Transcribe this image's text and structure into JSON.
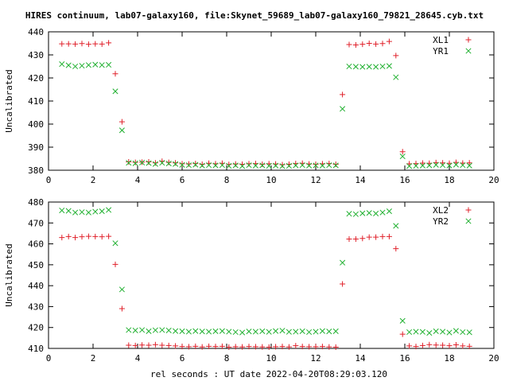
{
  "title": "HIRES continuum, lab07-galaxy160, file:Skynet_59689_lab07-galaxy160_79821_28645.cyb.txt",
  "xlabel": "rel seconds : UT date 2022-04-20T08:29:03.120",
  "colors": {
    "XL": "#e0202a",
    "YR": "#20b030"
  },
  "chart_data": [
    {
      "type": "scatter",
      "ylabel": "Uncalibrated",
      "xlim": [
        0,
        20
      ],
      "ylim": [
        380,
        440
      ],
      "xticks": [
        0,
        2,
        4,
        6,
        8,
        10,
        12,
        14,
        16,
        18,
        20
      ],
      "yticks": [
        380,
        390,
        400,
        410,
        420,
        430,
        440
      ],
      "legend": "top-right",
      "series": [
        {
          "name": "XL1",
          "marker": "plus",
          "x": [
            0.6,
            0.9,
            1.2,
            1.5,
            1.8,
            2.1,
            2.4,
            2.7,
            3.0,
            3.3,
            3.6,
            3.9,
            4.2,
            4.5,
            4.8,
            5.1,
            5.4,
            5.7,
            6.0,
            6.3,
            6.6,
            6.9,
            7.2,
            7.5,
            7.8,
            8.1,
            8.4,
            8.7,
            9.0,
            9.3,
            9.6,
            9.9,
            10.2,
            10.5,
            10.8,
            11.1,
            11.4,
            11.7,
            12.0,
            12.3,
            12.6,
            12.9,
            13.2,
            13.5,
            13.8,
            14.1,
            14.4,
            14.7,
            15.0,
            15.3,
            15.6,
            15.9,
            16.2,
            16.5,
            16.8,
            17.1,
            17.4,
            17.7,
            18.0,
            18.3,
            18.6,
            18.9
          ],
          "y": [
            434.8,
            434.8,
            434.7,
            434.9,
            434.6,
            434.8,
            434.7,
            435.2,
            421.8,
            401.0,
            383.6,
            383.4,
            383.5,
            383.6,
            383.2,
            383.9,
            383.4,
            383.2,
            382.8,
            382.7,
            382.9,
            382.6,
            383.0,
            382.8,
            383.0,
            382.5,
            382.7,
            382.6,
            382.8,
            382.9,
            382.6,
            382.8,
            382.7,
            382.4,
            382.6,
            382.9,
            383.0,
            382.7,
            382.6,
            382.8,
            382.9,
            382.6,
            412.8,
            434.5,
            434.3,
            434.6,
            435.0,
            434.7,
            434.9,
            435.8,
            429.7,
            388.0,
            382.8,
            382.9,
            383.1,
            383.0,
            383.3,
            383.2,
            383.0,
            383.4,
            383.1,
            383.2
          ]
        },
        {
          "name": "YR1",
          "marker": "cross",
          "x": [
            0.6,
            0.9,
            1.2,
            1.5,
            1.8,
            2.1,
            2.4,
            2.7,
            3.0,
            3.3,
            3.6,
            3.9,
            4.2,
            4.5,
            4.8,
            5.1,
            5.4,
            5.7,
            6.0,
            6.3,
            6.6,
            6.9,
            7.2,
            7.5,
            7.8,
            8.1,
            8.4,
            8.7,
            9.0,
            9.3,
            9.6,
            9.9,
            10.2,
            10.5,
            10.8,
            11.1,
            11.4,
            11.7,
            12.0,
            12.3,
            12.6,
            12.9,
            13.2,
            13.5,
            13.8,
            14.1,
            14.4,
            14.7,
            15.0,
            15.3,
            15.6,
            15.9,
            16.2,
            16.5,
            16.8,
            17.1,
            17.4,
            17.7,
            18.0,
            18.3,
            18.6,
            18.9
          ],
          "y": [
            426.0,
            425.5,
            425.0,
            425.3,
            425.6,
            425.8,
            425.6,
            425.7,
            414.2,
            397.3,
            383.2,
            383.0,
            383.3,
            383.1,
            382.7,
            383.2,
            382.9,
            382.7,
            382.3,
            382.2,
            382.4,
            382.0,
            382.2,
            382.1,
            382.2,
            381.9,
            382.1,
            381.8,
            382.2,
            382.0,
            382.1,
            381.9,
            382.0,
            381.8,
            381.9,
            382.1,
            382.2,
            382.0,
            382.1,
            382.0,
            382.2,
            382.1,
            406.6,
            425.0,
            424.9,
            424.8,
            424.9,
            424.8,
            425.0,
            425.2,
            420.3,
            386.0,
            381.8,
            381.9,
            382.0,
            382.1,
            382.3,
            382.2,
            382.0,
            382.4,
            382.2,
            382.0
          ]
        }
      ]
    },
    {
      "type": "scatter",
      "ylabel": "Uncalibrated",
      "xlim": [
        0,
        20
      ],
      "ylim": [
        410,
        480
      ],
      "xticks": [
        0,
        2,
        4,
        6,
        8,
        10,
        12,
        14,
        16,
        18,
        20
      ],
      "yticks": [
        410,
        420,
        430,
        440,
        450,
        460,
        470,
        480
      ],
      "legend": "top-right",
      "series": [
        {
          "name": "XL2",
          "marker": "plus",
          "x": [
            0.6,
            0.9,
            1.2,
            1.5,
            1.8,
            2.1,
            2.4,
            2.7,
            3.0,
            3.3,
            3.6,
            3.9,
            4.2,
            4.5,
            4.8,
            5.1,
            5.4,
            5.7,
            6.0,
            6.3,
            6.6,
            6.9,
            7.2,
            7.5,
            7.8,
            8.1,
            8.4,
            8.7,
            9.0,
            9.3,
            9.6,
            9.9,
            10.2,
            10.5,
            10.8,
            11.1,
            11.4,
            11.7,
            12.0,
            12.3,
            12.6,
            12.9,
            13.2,
            13.5,
            13.8,
            14.1,
            14.4,
            14.7,
            15.0,
            15.3,
            15.6,
            15.9,
            16.2,
            16.5,
            16.8,
            17.1,
            17.4,
            17.7,
            18.0,
            18.3,
            18.6,
            18.9
          ],
          "y": [
            463.0,
            463.5,
            463.0,
            463.4,
            463.6,
            463.5,
            463.4,
            463.6,
            450.2,
            429.0,
            411.5,
            411.4,
            411.6,
            411.5,
            411.8,
            411.5,
            411.4,
            411.2,
            410.9,
            410.8,
            411.0,
            410.7,
            411.0,
            410.9,
            411.0,
            410.6,
            410.8,
            410.7,
            410.9,
            410.8,
            410.7,
            410.6,
            410.8,
            410.9,
            410.7,
            411.3,
            410.9,
            410.8,
            410.8,
            410.9,
            410.7,
            410.6,
            440.8,
            462.3,
            462.3,
            462.6,
            463.2,
            463.2,
            463.5,
            463.5,
            457.7,
            416.8,
            411.2,
            410.9,
            411.4,
            411.8,
            411.6,
            411.5,
            411.3,
            411.7,
            411.2,
            411.0
          ]
        },
        {
          "name": "YR2",
          "marker": "cross",
          "x": [
            0.6,
            0.9,
            1.2,
            1.5,
            1.8,
            2.1,
            2.4,
            2.7,
            3.0,
            3.3,
            3.6,
            3.9,
            4.2,
            4.5,
            4.8,
            5.1,
            5.4,
            5.7,
            6.0,
            6.3,
            6.6,
            6.9,
            7.2,
            7.5,
            7.8,
            8.1,
            8.4,
            8.7,
            9.0,
            9.3,
            9.6,
            9.9,
            10.2,
            10.5,
            10.8,
            11.1,
            11.4,
            11.7,
            12.0,
            12.3,
            12.6,
            12.9,
            13.2,
            13.5,
            13.8,
            14.1,
            14.4,
            14.7,
            15.0,
            15.3,
            15.6,
            15.9,
            16.2,
            16.5,
            16.8,
            17.1,
            17.4,
            17.7,
            18.0,
            18.3,
            18.6,
            18.9
          ],
          "y": [
            476.0,
            475.8,
            475.0,
            475.2,
            475.0,
            475.4,
            475.6,
            476.2,
            460.3,
            438.2,
            418.8,
            418.6,
            418.8,
            418.2,
            418.7,
            418.8,
            418.6,
            418.3,
            418.2,
            418.0,
            418.3,
            418.1,
            418.0,
            418.2,
            418.3,
            418.0,
            417.8,
            417.6,
            418.1,
            418.0,
            418.2,
            417.9,
            418.3,
            418.5,
            417.9,
            418.0,
            418.2,
            417.8,
            418.0,
            418.3,
            418.1,
            418.2,
            451.0,
            474.4,
            474.2,
            474.6,
            474.8,
            474.5,
            475.0,
            475.6,
            468.6,
            423.2,
            417.8,
            418.0,
            417.9,
            417.4,
            418.2,
            418.0,
            417.6,
            418.4,
            417.8,
            417.7
          ]
        }
      ]
    }
  ]
}
